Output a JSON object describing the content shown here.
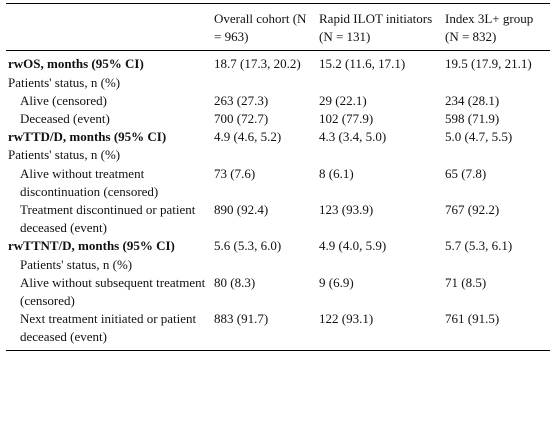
{
  "table": {
    "header": [
      "Overall cohort (N = 963)",
      "Rapid ILOT initiators (N = 131)",
      "Index 3L+ group (N = 832)"
    ],
    "rows": [
      [
        "rwOS, months (95% CI)",
        "18.7 (17.3, 20.2)",
        "15.2 (11.6, 17.1)",
        "19.5 (17.9, 21.1)"
      ],
      [
        "Patients' status, n (%)"
      ],
      [
        "Alive (censored)",
        "263 (27.3)",
        "29 (22.1)",
        "234 (28.1)"
      ],
      [
        "Deceased (event)",
        "700 (72.7)",
        "102 (77.9)",
        "598 (71.9)"
      ],
      [
        "rwTTD/D, months (95% CI)",
        "4.9 (4.6, 5.2)",
        "4.3 (3.4, 5.0)",
        "5.0 (4.7, 5.5)"
      ],
      [
        "Patients' status, n (%)"
      ],
      [
        "Alive without treatment discontinuation (censored)",
        "73 (7.6)",
        "8 (6.1)",
        "65 (7.8)"
      ],
      [
        "Treatment discontinued or patient deceased (event)",
        "890 (92.4)",
        "123 (93.9)",
        "767 (92.2)"
      ],
      [
        "rwTTNT/D, months (95% CI)",
        "5.6 (5.3, 6.0)",
        "4.9 (4.0, 5.9)",
        "5.7 (5.3, 6.1)"
      ],
      [
        "Patients' status, n (%)"
      ],
      [
        "Alive without subsequent treatment (censored)",
        "80 (8.3)",
        "9 (6.9)",
        "71 (8.5)"
      ],
      [
        "Next treatment initiated or patient deceased (event)",
        "883 (91.7)",
        "122 (93.1)",
        "761 (91.5)"
      ]
    ]
  }
}
